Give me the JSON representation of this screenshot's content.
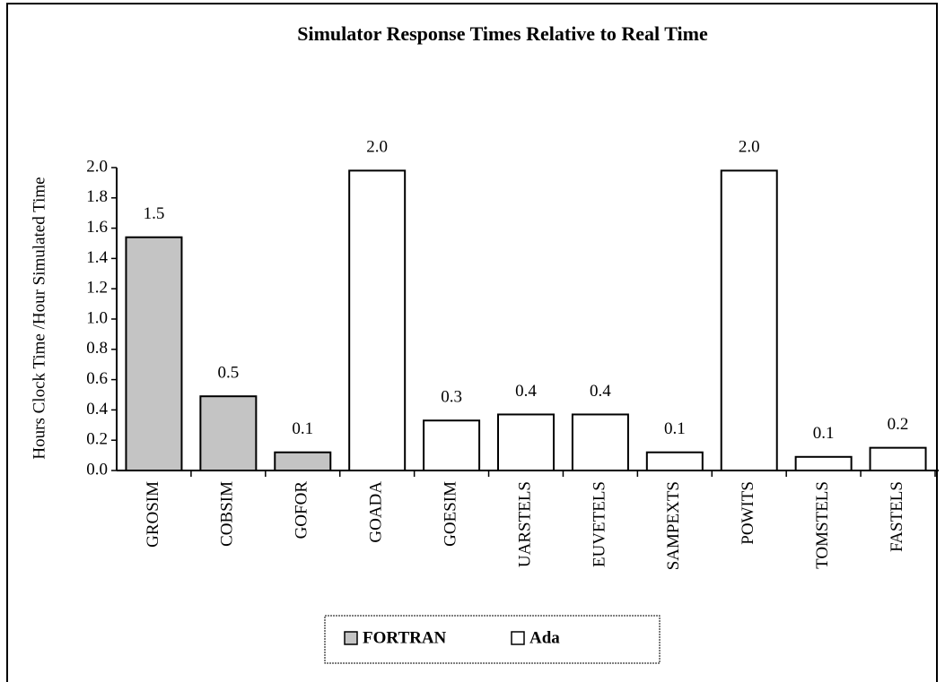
{
  "chart_data": {
    "type": "bar",
    "title": "Simulator Response Times Relative to Real Time",
    "y_label": "Hours Clock Time /Hour Simulated Time",
    "categories": [
      "GROSIM",
      "COBSIM",
      "GOFOR",
      "GOADA",
      "GOESIM",
      "UARSTELS",
      "EUVETELS",
      "SAMPEXTS",
      "POWITS",
      "TOMSTELS",
      "FASTELS"
    ],
    "series": [
      {
        "name": "FORTRAN",
        "color": "#c4c4c4",
        "values": [
          1.54,
          0.49,
          0.12,
          null,
          null,
          null,
          null,
          null,
          null,
          null,
          null
        ],
        "value_labels": [
          "1.5",
          "0.5",
          "0.1",
          null,
          null,
          null,
          null,
          null,
          null,
          null,
          null
        ]
      },
      {
        "name": "Ada",
        "color": "#ffffff",
        "values": [
          null,
          null,
          null,
          1.98,
          0.33,
          0.37,
          0.37,
          0.12,
          1.98,
          0.09,
          0.15
        ],
        "value_labels": [
          null,
          null,
          null,
          "2.0",
          "0.3",
          "0.4",
          "0.4",
          "0.1",
          "2.0",
          "0.1",
          "0.2"
        ]
      }
    ],
    "ylim": [
      0,
      2.0
    ],
    "yticks": [
      {
        "value": 0,
        "label": "0.0"
      },
      0.2,
      0.4,
      0.6,
      0.8,
      {
        "value": 1.0,
        "label": "1.0"
      },
      1.2,
      1.4,
      1.6,
      1.8,
      {
        "value": 2.0,
        "label": "2.0"
      }
    ],
    "legend": "bottom"
  }
}
